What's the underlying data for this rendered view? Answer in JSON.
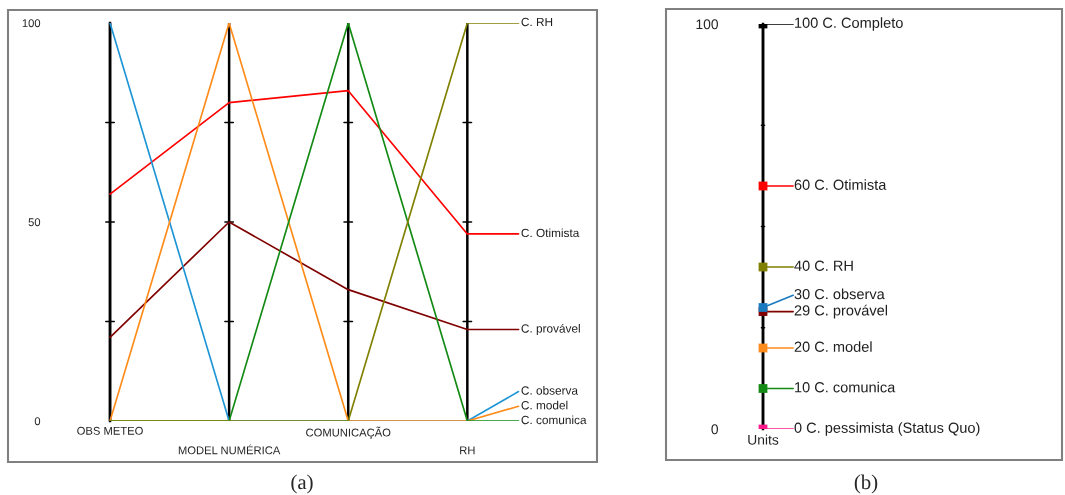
{
  "chart_data": [
    {
      "type": "line",
      "categories": [
        "OBS METEO",
        "MODEL NUMÉRICA",
        "COMUNICAÇÃO",
        "RH"
      ],
      "ylim": [
        0,
        100
      ],
      "yticks": [
        0,
        50,
        100
      ],
      "grid": "x",
      "legend": "right",
      "annotations": [
        "(a)"
      ],
      "series": [
        {
          "name": "C. Otimista",
          "color": "#ff0000",
          "values": [
            57,
            80,
            83,
            47
          ]
        },
        {
          "name": "C. provável",
          "color": "#800000",
          "values": [
            21,
            50,
            33,
            23
          ]
        },
        {
          "name": "C. observa",
          "color": "#1f95d6",
          "values": [
            100,
            0,
            0,
            0
          ]
        },
        {
          "name": "C. model",
          "color": "#ff8c1a",
          "values": [
            0,
            100,
            0,
            0
          ]
        },
        {
          "name": "C. comunica",
          "color": "#138a13",
          "values": [
            0,
            0,
            100,
            0
          ]
        },
        {
          "name": "C. RH",
          "color": "#808000",
          "values": [
            0,
            0,
            0,
            100
          ]
        }
      ]
    },
    {
      "type": "scatter",
      "categories": [
        "Units"
      ],
      "ylim": [
        0,
        100
      ],
      "yticks": [
        0,
        100
      ],
      "grid": "x",
      "legend": "right",
      "marker": "square",
      "annotations": [
        "(b)"
      ],
      "series": [
        {
          "name": "100 C. Completo",
          "color": "#000000",
          "values": [
            100
          ]
        },
        {
          "name": "60 C. Otimista",
          "color": "#ff0000",
          "values": [
            60
          ]
        },
        {
          "name": "40 C. RH",
          "color": "#808000",
          "values": [
            40
          ]
        },
        {
          "name": "30 C. observa",
          "color": "#1a7ac0",
          "values": [
            30
          ]
        },
        {
          "name": "29 C. provável",
          "color": "#800000",
          "values": [
            29
          ]
        },
        {
          "name": "20 C. model",
          "color": "#ff8c1a",
          "values": [
            20
          ]
        },
        {
          "name": "10 C. comunica",
          "color": "#138a13",
          "values": [
            10
          ]
        },
        {
          "name": "0 C. pessimista (Status Quo)",
          "color": "#ff1a8c",
          "values": [
            0
          ]
        }
      ]
    }
  ]
}
